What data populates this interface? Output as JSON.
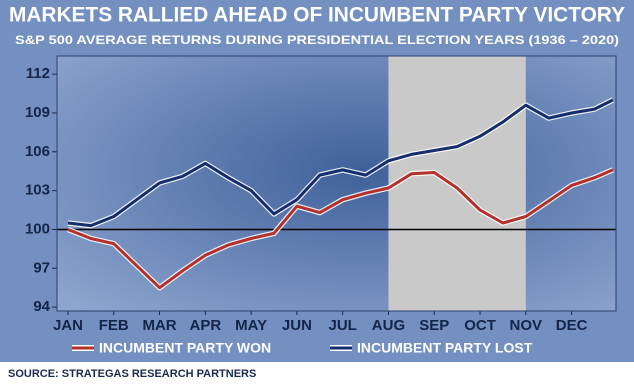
{
  "chart_data": {
    "type": "line",
    "title": "MARKETS RALLIED AHEAD OF INCUMBENT PARTY VICTORY",
    "subtitle": "S&P 500 AVERAGE RETURNS DURING PRESIDENTIAL ELECTION YEARS (1936 – 2020)",
    "source": "SOURCE: STRATEGAS RESEARCH PARTNERS",
    "x": [
      0,
      0.5,
      1,
      1.5,
      2,
      2.5,
      3,
      3.5,
      4,
      4.5,
      5,
      5.5,
      6,
      6.5,
      7,
      7.5,
      8,
      8.5,
      9,
      9.5,
      10,
      10.5,
      11,
      11.5,
      11.9
    ],
    "series": [
      {
        "name": "INCUMBENT PARTY WON",
        "color": "#b3302b",
        "values": [
          100,
          99.3,
          98.9,
          97.2,
          95.5,
          96.8,
          98,
          98.8,
          99.3,
          99.7,
          101.8,
          101.3,
          102.3,
          102.8,
          103.2,
          104.3,
          104.4,
          103.2,
          101.5,
          100.5,
          101,
          102.2,
          103.4,
          104,
          104.6
        ]
      },
      {
        "name": "INCUMBENT PARTY LOST",
        "color": "#142d6b",
        "values": [
          100.5,
          100.3,
          101,
          102.3,
          103.6,
          104.1,
          105.1,
          104,
          103,
          101.2,
          102.3,
          104.2,
          104.6,
          104.2,
          105.3,
          105.8,
          106.1,
          106.4,
          107.2,
          108.3,
          109.6,
          108.6,
          109,
          109.3,
          110
        ]
      }
    ],
    "xlim": [
      -0.24,
      11.97
    ],
    "xticks": [
      {
        "value": 0,
        "label": "JAN"
      },
      {
        "value": 1,
        "label": "FEB"
      },
      {
        "value": 2,
        "label": "MAR"
      },
      {
        "value": 3,
        "label": "APR"
      },
      {
        "value": 4,
        "label": "MAY"
      },
      {
        "value": 5,
        "label": "JUN"
      },
      {
        "value": 6,
        "label": "JUL"
      },
      {
        "value": 7,
        "label": "AUG"
      },
      {
        "value": 8,
        "label": "SEP"
      },
      {
        "value": 9,
        "label": "OCT"
      },
      {
        "value": 10,
        "label": "NOV"
      },
      {
        "value": 11,
        "label": "DEC"
      }
    ],
    "ylim": [
      93.7,
      113.4
    ],
    "yticks": [
      94,
      97,
      100,
      103,
      106,
      109,
      112
    ],
    "reference_line": 100,
    "shaded_range": [
      7,
      10
    ]
  }
}
